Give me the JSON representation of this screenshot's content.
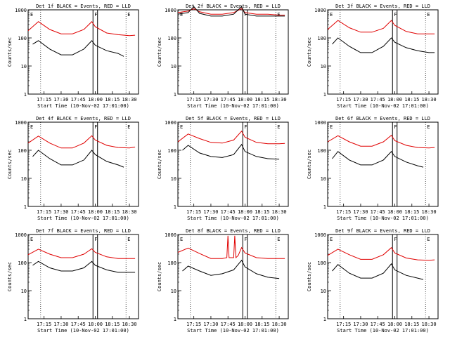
{
  "chart_data": [
    {
      "type": "line",
      "title": "Det 1f BLACK = Events, RED = LLD",
      "xlabel": "Start Time (10-Nov-02 17:01:00)",
      "ylabel": "Counts/sec",
      "ylim": [
        1,
        1000
      ],
      "log_y": true,
      "x_tick_labels": [
        "17:15",
        "17:30",
        "17:45",
        "18:00",
        "18:15",
        "18:30"
      ],
      "y_tick_labels": [
        "1",
        "10",
        "100",
        "1000"
      ],
      "markers": [
        "E",
        "F",
        "E"
      ],
      "series": [
        {
          "name": "LLD",
          "color": "#e00000",
          "x": [
            "17:01",
            "17:10",
            "17:20",
            "17:30",
            "17:40",
            "17:50",
            "17:57",
            "18:00",
            "18:10",
            "18:20",
            "18:30",
            "18:35"
          ],
          "y": [
            180,
            380,
            200,
            140,
            140,
            200,
            380,
            250,
            150,
            130,
            120,
            125
          ]
        },
        {
          "name": "Events",
          "color": "#000000",
          "x": [
            "17:05",
            "17:10",
            "17:20",
            "17:30",
            "17:40",
            "17:50",
            "17:57",
            "18:00",
            "18:10",
            "18:20",
            "18:25"
          ],
          "y": [
            60,
            80,
            40,
            25,
            25,
            40,
            80,
            55,
            35,
            28,
            22
          ]
        }
      ]
    },
    {
      "type": "line",
      "title": "Det 2f BLACK = Events, RED = LLD",
      "xlabel": "Start Time (10-Nov-02 17:01:00)",
      "ylabel": "Counts/sec",
      "ylim": [
        1,
        1000
      ],
      "log_y": true,
      "x_tick_labels": [
        "17:15",
        "17:30",
        "17:45",
        "18:00",
        "18:15",
        "18:30"
      ],
      "y_tick_labels": [
        "1",
        "10",
        "100",
        "1000"
      ],
      "markers": [
        "E",
        "F",
        "E"
      ],
      "series": [
        {
          "name": "LLD",
          "color": "#e00000",
          "x": [
            "17:01",
            "17:10",
            "17:15",
            "17:20",
            "17:30",
            "17:40",
            "17:50",
            "17:57",
            "18:00",
            "18:10",
            "18:20",
            "18:30",
            "18:35"
          ],
          "y": [
            800,
            900,
            1100,
            850,
            700,
            700,
            800,
            1100,
            800,
            700,
            700,
            650,
            650
          ]
        },
        {
          "name": "Events",
          "color": "#000000",
          "x": [
            "17:01",
            "17:10",
            "17:15",
            "17:20",
            "17:30",
            "17:40",
            "17:50",
            "17:57",
            "18:00",
            "18:10",
            "18:20",
            "18:30",
            "18:35"
          ],
          "y": [
            700,
            800,
            1300,
            750,
            600,
            600,
            700,
            1300,
            700,
            600,
            600,
            600,
            600
          ]
        }
      ]
    },
    {
      "type": "line",
      "title": "Det 3f BLACK = Events, RED = LLD",
      "xlabel": "Start Time (10-Nov-02 17:01:00)",
      "ylabel": "Counts/sec",
      "ylim": [
        1,
        1000
      ],
      "log_y": true,
      "x_tick_labels": [
        "17:15",
        "17:30",
        "17:45",
        "18:00",
        "18:15",
        "18:30"
      ],
      "y_tick_labels": [
        "1",
        "10",
        "100",
        "1000"
      ],
      "markers": [
        "E",
        "F",
        "E"
      ],
      "series": [
        {
          "name": "LLD",
          "color": "#e00000",
          "x": [
            "17:01",
            "17:10",
            "17:20",
            "17:30",
            "17:40",
            "17:50",
            "17:57",
            "18:00",
            "18:10",
            "18:20",
            "18:30",
            "18:35"
          ],
          "y": [
            200,
            420,
            230,
            160,
            160,
            220,
            420,
            280,
            170,
            140,
            140,
            140
          ]
        },
        {
          "name": "Events",
          "color": "#000000",
          "x": [
            "17:05",
            "17:10",
            "17:20",
            "17:30",
            "17:40",
            "17:50",
            "17:57",
            "18:00",
            "18:10",
            "18:20",
            "18:30",
            "18:35"
          ],
          "y": [
            60,
            100,
            50,
            30,
            30,
            50,
            100,
            70,
            45,
            35,
            30,
            30
          ]
        }
      ]
    },
    {
      "type": "line",
      "title": "Det 4f BLACK = Events, RED = LLD",
      "xlabel": "Start Time (10-Nov-02 17:01:00)",
      "ylabel": "Counts/sec",
      "ylim": [
        1,
        1000
      ],
      "log_y": true,
      "x_tick_labels": [
        "17:15",
        "17:30",
        "17:45",
        "18:00",
        "18:15",
        "18:30"
      ],
      "y_tick_labels": [
        "1",
        "10",
        "100",
        "1000"
      ],
      "markers": [
        "E",
        "F",
        "E"
      ],
      "series": [
        {
          "name": "LLD",
          "color": "#e00000",
          "x": [
            "17:01",
            "17:10",
            "17:20",
            "17:30",
            "17:40",
            "17:50",
            "17:57",
            "18:00",
            "18:10",
            "18:20",
            "18:30",
            "18:35"
          ],
          "y": [
            180,
            320,
            180,
            120,
            120,
            180,
            330,
            230,
            150,
            125,
            120,
            130
          ]
        },
        {
          "name": "Events",
          "color": "#000000",
          "x": [
            "17:05",
            "17:10",
            "17:20",
            "17:30",
            "17:40",
            "17:50",
            "17:57",
            "18:00",
            "18:10",
            "18:20",
            "18:25"
          ],
          "y": [
            60,
            100,
            50,
            30,
            30,
            45,
            100,
            70,
            40,
            30,
            25
          ]
        }
      ]
    },
    {
      "type": "line",
      "title": "Det 5f BLACK = Events, RED = LLD",
      "xlabel": "Start Time (10-Nov-02 17:01:00)",
      "ylabel": "Counts/sec",
      "ylim": [
        1,
        1000
      ],
      "log_y": true,
      "x_tick_labels": [
        "17:15",
        "17:30",
        "17:45",
        "18:00",
        "18:15",
        "18:30"
      ],
      "y_tick_labels": [
        "1",
        "10",
        "100",
        "1000"
      ],
      "markers": [
        "E",
        "F",
        "E"
      ],
      "series": [
        {
          "name": "LLD",
          "color": "#e00000",
          "x": [
            "17:01",
            "17:10",
            "17:20",
            "17:30",
            "17:40",
            "17:50",
            "17:57",
            "18:00",
            "18:10",
            "18:20",
            "18:30",
            "18:35"
          ],
          "y": [
            200,
            380,
            260,
            190,
            180,
            230,
            480,
            290,
            190,
            170,
            170,
            175
          ]
        },
        {
          "name": "Events",
          "color": "#000000",
          "x": [
            "17:05",
            "17:10",
            "17:20",
            "17:30",
            "17:40",
            "17:50",
            "17:57",
            "18:00",
            "18:10",
            "18:20",
            "18:30"
          ],
          "y": [
            100,
            150,
            80,
            60,
            55,
            70,
            160,
            90,
            60,
            50,
            48
          ]
        }
      ]
    },
    {
      "type": "line",
      "title": "Det 6f BLACK = Events, RED = LLD",
      "xlabel": "Start Time (10-Nov-02 17:01:00)",
      "ylabel": "Counts/sec",
      "ylim": [
        1,
        1000
      ],
      "log_y": true,
      "x_tick_labels": [
        "17:15",
        "17:30",
        "17:45",
        "18:00",
        "18:15",
        "18:30"
      ],
      "y_tick_labels": [
        "1",
        "10",
        "100",
        "1000"
      ],
      "markers": [
        "E",
        "F",
        "E"
      ],
      "series": [
        {
          "name": "LLD",
          "color": "#e00000",
          "x": [
            "17:01",
            "17:10",
            "17:20",
            "17:30",
            "17:40",
            "17:50",
            "17:57",
            "18:00",
            "18:10",
            "18:20",
            "18:30",
            "18:35"
          ],
          "y": [
            200,
            330,
            200,
            140,
            140,
            200,
            340,
            220,
            150,
            125,
            120,
            125
          ]
        },
        {
          "name": "Events",
          "color": "#000000",
          "x": [
            "17:05",
            "17:10",
            "17:20",
            "17:30",
            "17:40",
            "17:50",
            "17:57",
            "18:00",
            "18:10",
            "18:20",
            "18:25"
          ],
          "y": [
            50,
            90,
            45,
            30,
            30,
            45,
            90,
            60,
            38,
            28,
            25
          ]
        }
      ]
    },
    {
      "type": "line",
      "title": "Det 7f BLACK = Events, RED = LLD",
      "xlabel": "Start Time (10-Nov-02 17:01:00)",
      "ylabel": "Counts/sec",
      "ylim": [
        1,
        1000
      ],
      "log_y": true,
      "x_tick_labels": [
        "17:15",
        "17:30",
        "17:45",
        "18:00",
        "18:15",
        "18:30"
      ],
      "y_tick_labels": [
        "1",
        "10",
        "100",
        "1000"
      ],
      "markers": [
        "E",
        "F",
        "E"
      ],
      "series": [
        {
          "name": "LLD",
          "color": "#e00000",
          "x": [
            "17:01",
            "17:10",
            "17:20",
            "17:30",
            "17:40",
            "17:50",
            "17:57",
            "18:00",
            "18:10",
            "18:20",
            "18:30",
            "18:35"
          ],
          "y": [
            190,
            300,
            200,
            150,
            150,
            200,
            310,
            230,
            160,
            140,
            140,
            140
          ]
        },
        {
          "name": "Events",
          "color": "#000000",
          "x": [
            "17:05",
            "17:10",
            "17:20",
            "17:30",
            "17:40",
            "17:50",
            "17:57",
            "18:00",
            "18:10",
            "18:20",
            "18:30",
            "18:35"
          ],
          "y": [
            80,
            110,
            65,
            50,
            50,
            65,
            110,
            80,
            55,
            45,
            45,
            45
          ]
        }
      ]
    },
    {
      "type": "line",
      "title": "Det 8f BLACK = Events, RED = LLD",
      "xlabel": "Start Time (10-Nov-02 17:01:00)",
      "ylabel": "Counts/sec",
      "ylim": [
        1,
        1000
      ],
      "log_y": true,
      "x_tick_labels": [
        "17:15",
        "17:30",
        "17:45",
        "18:00",
        "18:15",
        "18:30"
      ],
      "y_tick_labels": [
        "1",
        "10",
        "100",
        "1000"
      ],
      "markers": [
        "E",
        "F",
        "E"
      ],
      "series": [
        {
          "name": "LLD",
          "color": "#e00000",
          "x": [
            "17:01",
            "17:10",
            "17:20",
            "17:30",
            "17:40",
            "17:44",
            "17:45",
            "17:46",
            "17:50",
            "17:51",
            "17:52",
            "17:54",
            "17:57",
            "18:00",
            "18:10",
            "18:20",
            "18:30",
            "18:35"
          ],
          "y": [
            230,
            330,
            210,
            140,
            140,
            150,
            900,
            150,
            150,
            900,
            150,
            180,
            340,
            220,
            150,
            140,
            140,
            140
          ]
        },
        {
          "name": "Events",
          "color": "#000000",
          "x": [
            "17:05",
            "17:10",
            "17:20",
            "17:30",
            "17:40",
            "17:50",
            "17:57",
            "18:00",
            "18:10",
            "18:20",
            "18:30"
          ],
          "y": [
            50,
            75,
            50,
            35,
            40,
            55,
            120,
            70,
            40,
            30,
            27
          ]
        }
      ]
    },
    {
      "type": "line",
      "title": "Det 9f BLACK = Events, RED = LLD",
      "xlabel": "Start Time (10-Nov-02 17:01:00)",
      "ylabel": "Counts/sec",
      "ylim": [
        1,
        1000
      ],
      "log_y": true,
      "x_tick_labels": [
        "17:15",
        "17:30",
        "17:45",
        "18:00",
        "18:15",
        "18:30"
      ],
      "y_tick_labels": [
        "1",
        "10",
        "100",
        "1000"
      ],
      "markers": [
        "E",
        "F",
        "E"
      ],
      "series": [
        {
          "name": "LLD",
          "color": "#e00000",
          "x": [
            "17:01",
            "17:10",
            "17:20",
            "17:30",
            "17:40",
            "17:50",
            "17:57",
            "18:00",
            "18:10",
            "18:20",
            "18:30",
            "18:35"
          ],
          "y": [
            180,
            300,
            190,
            130,
            130,
            190,
            340,
            220,
            145,
            125,
            120,
            125
          ]
        },
        {
          "name": "Events",
          "color": "#000000",
          "x": [
            "17:05",
            "17:10",
            "17:20",
            "17:30",
            "17:40",
            "17:50",
            "17:57",
            "18:00",
            "18:10",
            "18:20",
            "18:25"
          ],
          "y": [
            50,
            85,
            42,
            28,
            28,
            42,
            90,
            55,
            35,
            28,
            25
          ]
        }
      ]
    }
  ]
}
